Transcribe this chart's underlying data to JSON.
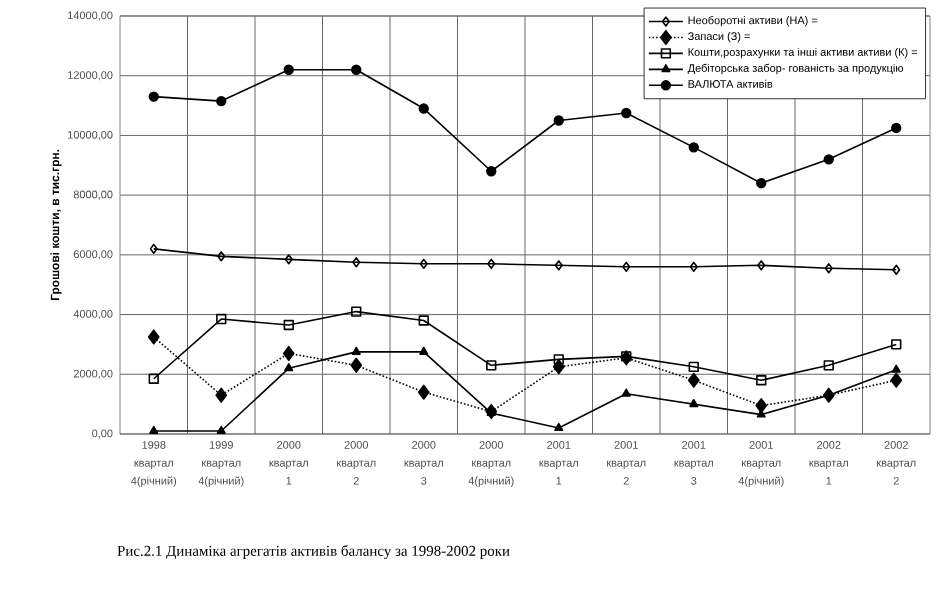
{
  "chart_data": {
    "type": "line",
    "title": "Рис.2.1  Динаміка агрегатів активів балансу за 1998-2002 роки",
    "ylabel": "Грошові кошти, в тис.грн.",
    "categories": [
      "1998 квартал 4(річний)",
      "1999 квартал 4(річний)",
      "2000 квартал 1",
      "2000 квартал 2",
      "2000 квартал 3",
      "2000 квартал 4(річний)",
      "2001 квартал 1",
      "2001 квартал 2",
      "2001 квартал 3",
      "2001 квартал 4(річний)",
      "2002 квартал 1",
      "2002 квартал 2"
    ],
    "series": [
      {
        "name": "Необоротні активи (НА) =",
        "color": "#000000",
        "marker": "diamond",
        "line_style": "solid",
        "values": [
          6200,
          5950,
          5850,
          5750,
          5700,
          5700,
          5650,
          5600,
          5600,
          5650,
          5550,
          5500
        ]
      },
      {
        "name": "Запаси (З) =",
        "color": "#000000",
        "marker": "diamond",
        "line_style": "dotted",
        "values": [
          3250,
          1300,
          2700,
          2300,
          1400,
          750,
          2250,
          2550,
          1800,
          950,
          1300,
          1800
        ]
      },
      {
        "name": "Кошти,розрахунки та інші активи  активи (К) =",
        "color": "#000000",
        "marker": "square",
        "line_style": "solid",
        "values": [
          1850,
          3850,
          3650,
          4100,
          3800,
          2300,
          2500,
          2600,
          2250,
          1800,
          2300,
          3000
        ]
      },
      {
        "name": "Дебіторська забор- гованість за продукцію",
        "color": "#000000",
        "marker": "triangle",
        "line_style": "solid",
        "values": [
          100,
          100,
          2200,
          2750,
          2750,
          700,
          200,
          1350,
          1000,
          650,
          1300,
          2150
        ]
      },
      {
        "name": "ВАЛЮТА активів",
        "color": "#000000",
        "marker": "circle",
        "line_style": "solid",
        "values": [
          11300,
          11150,
          12200,
          12200,
          10900,
          8800,
          10500,
          10750,
          9600,
          8400,
          9200,
          10250
        ]
      }
    ],
    "ylim": [
      0,
      14000
    ],
    "yticks": [
      {
        "value": 0,
        "label": "0,00"
      },
      {
        "value": 2000,
        "label": "2000,00"
      },
      {
        "value": 4000,
        "label": "4000,00"
      },
      {
        "value": 6000,
        "label": "6000,00"
      },
      {
        "value": 8000,
        "label": "8000,00"
      },
      {
        "value": 10000,
        "label": "10000,00"
      },
      {
        "value": 12000,
        "label": "12000,00"
      },
      {
        "value": 14000,
        "label": "14000,00"
      }
    ],
    "grid": true,
    "legend": "top right"
  }
}
